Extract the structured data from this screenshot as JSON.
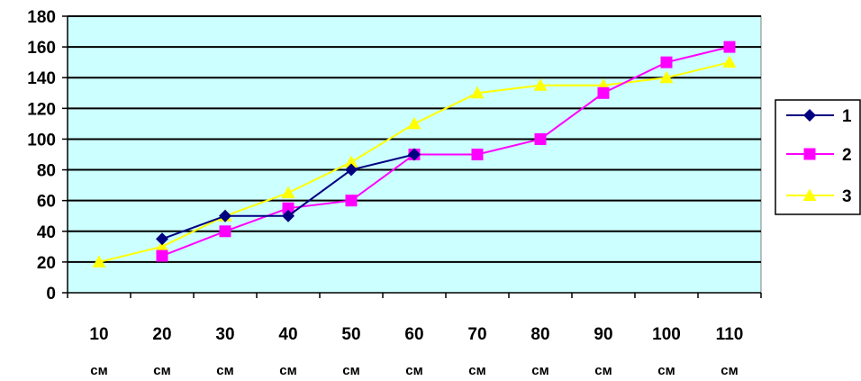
{
  "chart_data": {
    "type": "line",
    "categories": [
      "10",
      "20",
      "30",
      "40",
      "50",
      "60",
      "70",
      "80",
      "90",
      "100",
      "110"
    ],
    "category_unit": "см",
    "ylim": [
      0,
      180
    ],
    "yticks": [
      0,
      20,
      40,
      60,
      80,
      100,
      120,
      140,
      160,
      180
    ],
    "grid": true,
    "plot_background": "#ccffff",
    "legend_position": "right",
    "series": [
      {
        "name": "1",
        "color": "#000080",
        "marker": "diamond",
        "values": [
          null,
          35,
          50,
          50,
          80,
          90,
          null,
          null,
          null,
          null,
          null
        ]
      },
      {
        "name": "2",
        "color": "#ff00ff",
        "marker": "square",
        "values": [
          null,
          24,
          40,
          55,
          60,
          90,
          90,
          100,
          130,
          150,
          160
        ]
      },
      {
        "name": "3",
        "color": "#ffff00",
        "marker": "triangle",
        "values": [
          20,
          30,
          50,
          65,
          85,
          110,
          130,
          135,
          135,
          140,
          150
        ]
      }
    ]
  }
}
